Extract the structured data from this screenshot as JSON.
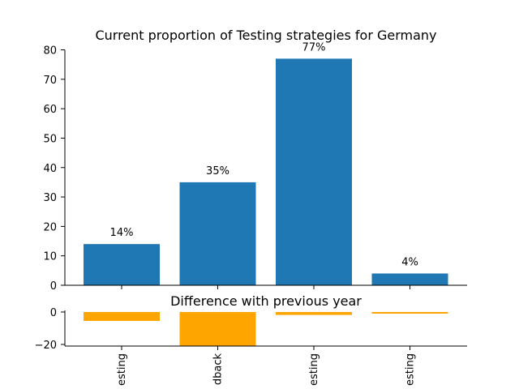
{
  "chart_data": [
    {
      "type": "bar",
      "title": "Current proportion of Testing strategies for Germany",
      "categories": [
        "esting",
        "dback",
        "esting",
        "esting"
      ],
      "values": [
        14,
        35,
        77,
        4
      ],
      "data_labels": [
        "14%",
        "35%",
        "77%",
        "4%"
      ],
      "ylim": [
        0,
        80
      ],
      "yticks": [
        0,
        10,
        20,
        30,
        40,
        50,
        60,
        70,
        80
      ],
      "grid": false,
      "bar_color": "#1f77b4"
    },
    {
      "type": "bar",
      "title": "Difference with previous year",
      "categories": [
        "esting",
        "dback",
        "esting",
        "esting"
      ],
      "values": [
        -5.5,
        -21,
        -1.8,
        -1
      ],
      "ylim": [
        -21,
        0
      ],
      "yticks": [
        0,
        -20
      ],
      "grid": false,
      "bar_color": "#ffa500"
    }
  ]
}
